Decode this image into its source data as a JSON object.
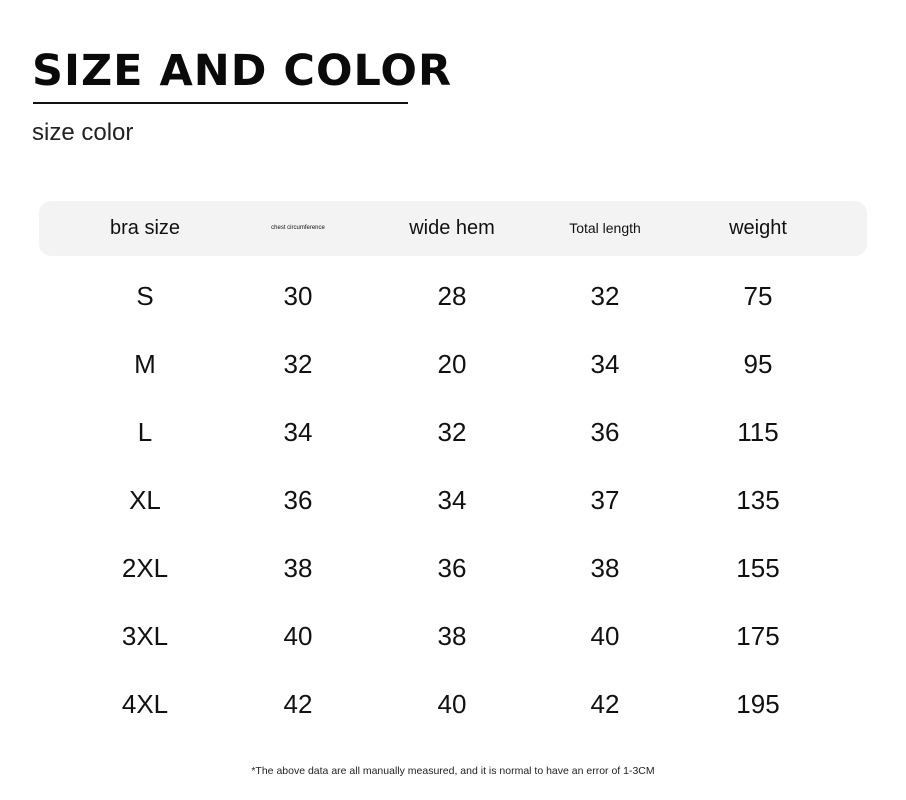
{
  "title": "SIZE AND COLOR",
  "subtitle": "size color",
  "table": {
    "headers": [
      "bra size",
      "chest circumference",
      "wide hem",
      "Total length",
      "weight"
    ],
    "rows": [
      [
        "S",
        "30",
        "28",
        "32",
        "75"
      ],
      [
        "M",
        "32",
        "20",
        "34",
        "95"
      ],
      [
        "L",
        "34",
        "32",
        "36",
        "115"
      ],
      [
        "XL",
        "36",
        "34",
        "37",
        "135"
      ],
      [
        "2XL",
        "38",
        "36",
        "38",
        "155"
      ],
      [
        "3XL",
        "40",
        "38",
        "40",
        "175"
      ],
      [
        "4XL",
        "42",
        "40",
        "42",
        "195"
      ]
    ]
  },
  "note": "*The above data are all manually measured, and it is normal to have an error of 1-3CM"
}
